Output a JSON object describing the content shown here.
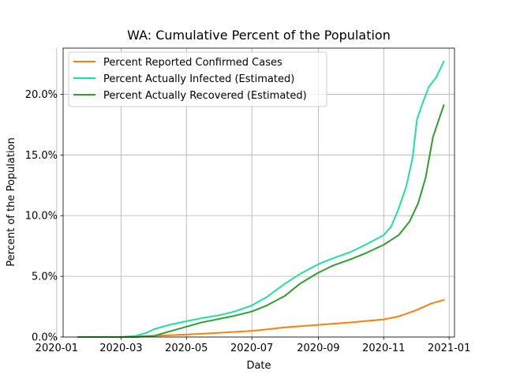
{
  "chart_data": {
    "type": "line",
    "title": "WA: Cumulative Percent of the Population",
    "xlabel": "Date",
    "ylabel": "Percent of the Population",
    "xlim": [
      "2020-01-07",
      "2021-01-06"
    ],
    "ylim": [
      0,
      23.8
    ],
    "x_ticks": [
      "2020-01",
      "2020-03",
      "2020-05",
      "2020-07",
      "2020-09",
      "2020-11",
      "2021-01"
    ],
    "y_ticks": [
      0,
      5,
      10,
      15,
      20
    ],
    "y_tick_labels": [
      "0.0%",
      "5.0%",
      "10.0%",
      "15.0%",
      "20.0%"
    ],
    "grid": true,
    "legend_position": "top-left",
    "series": [
      {
        "name": "Percent Reported Confirmed Cases",
        "color": "#ff7f0e",
        "points": [
          [
            "2020-01-21",
            0
          ],
          [
            "2020-03-01",
            0
          ],
          [
            "2020-04-01",
            0.1
          ],
          [
            "2020-05-01",
            0.2
          ],
          [
            "2020-06-01",
            0.35
          ],
          [
            "2020-07-01",
            0.5
          ],
          [
            "2020-08-01",
            0.8
          ],
          [
            "2020-09-01",
            1.0
          ],
          [
            "2020-10-01",
            1.2
          ],
          [
            "2020-11-01",
            1.45
          ],
          [
            "2020-11-15",
            1.7
          ],
          [
            "2020-12-01",
            2.2
          ],
          [
            "2020-12-15",
            2.75
          ],
          [
            "2020-12-27",
            3.05
          ]
        ]
      },
      {
        "name": "Percent Actually Infected (Estimated)",
        "color": "#1fe09f",
        "points": [
          [
            "2020-01-21",
            0
          ],
          [
            "2020-03-01",
            0
          ],
          [
            "2020-03-15",
            0.1
          ],
          [
            "2020-03-25",
            0.35
          ],
          [
            "2020-04-01",
            0.65
          ],
          [
            "2020-04-15",
            1.0
          ],
          [
            "2020-05-01",
            1.3
          ],
          [
            "2020-05-15",
            1.55
          ],
          [
            "2020-06-01",
            1.8
          ],
          [
            "2020-06-15",
            2.1
          ],
          [
            "2020-07-01",
            2.6
          ],
          [
            "2020-07-15",
            3.3
          ],
          [
            "2020-08-01",
            4.4
          ],
          [
            "2020-08-15",
            5.2
          ],
          [
            "2020-09-01",
            6.0
          ],
          [
            "2020-09-15",
            6.5
          ],
          [
            "2020-10-01",
            7.0
          ],
          [
            "2020-10-15",
            7.6
          ],
          [
            "2020-11-01",
            8.4
          ],
          [
            "2020-11-08",
            9.1
          ],
          [
            "2020-11-15",
            10.6
          ],
          [
            "2020-11-22",
            12.4
          ],
          [
            "2020-11-28",
            14.8
          ],
          [
            "2020-12-02",
            17.9
          ],
          [
            "2020-12-07",
            19.2
          ],
          [
            "2020-12-13",
            20.6
          ],
          [
            "2020-12-20",
            21.4
          ],
          [
            "2020-12-27",
            22.7
          ]
        ]
      },
      {
        "name": "Percent Actually Recovered (Estimated)",
        "color": "#2ca02c",
        "points": [
          [
            "2020-01-21",
            0
          ],
          [
            "2020-03-15",
            0
          ],
          [
            "2020-04-01",
            0.1
          ],
          [
            "2020-04-15",
            0.45
          ],
          [
            "2020-05-01",
            0.85
          ],
          [
            "2020-05-15",
            1.2
          ],
          [
            "2020-06-01",
            1.5
          ],
          [
            "2020-06-15",
            1.75
          ],
          [
            "2020-07-01",
            2.1
          ],
          [
            "2020-07-15",
            2.6
          ],
          [
            "2020-08-01",
            3.4
          ],
          [
            "2020-08-15",
            4.4
          ],
          [
            "2020-09-01",
            5.3
          ],
          [
            "2020-09-15",
            5.9
          ],
          [
            "2020-10-01",
            6.4
          ],
          [
            "2020-10-15",
            6.9
          ],
          [
            "2020-11-01",
            7.6
          ],
          [
            "2020-11-15",
            8.4
          ],
          [
            "2020-11-25",
            9.5
          ],
          [
            "2020-12-03",
            11.0
          ],
          [
            "2020-12-10",
            13.1
          ],
          [
            "2020-12-17",
            16.5
          ],
          [
            "2020-12-27",
            19.1
          ]
        ]
      }
    ]
  }
}
